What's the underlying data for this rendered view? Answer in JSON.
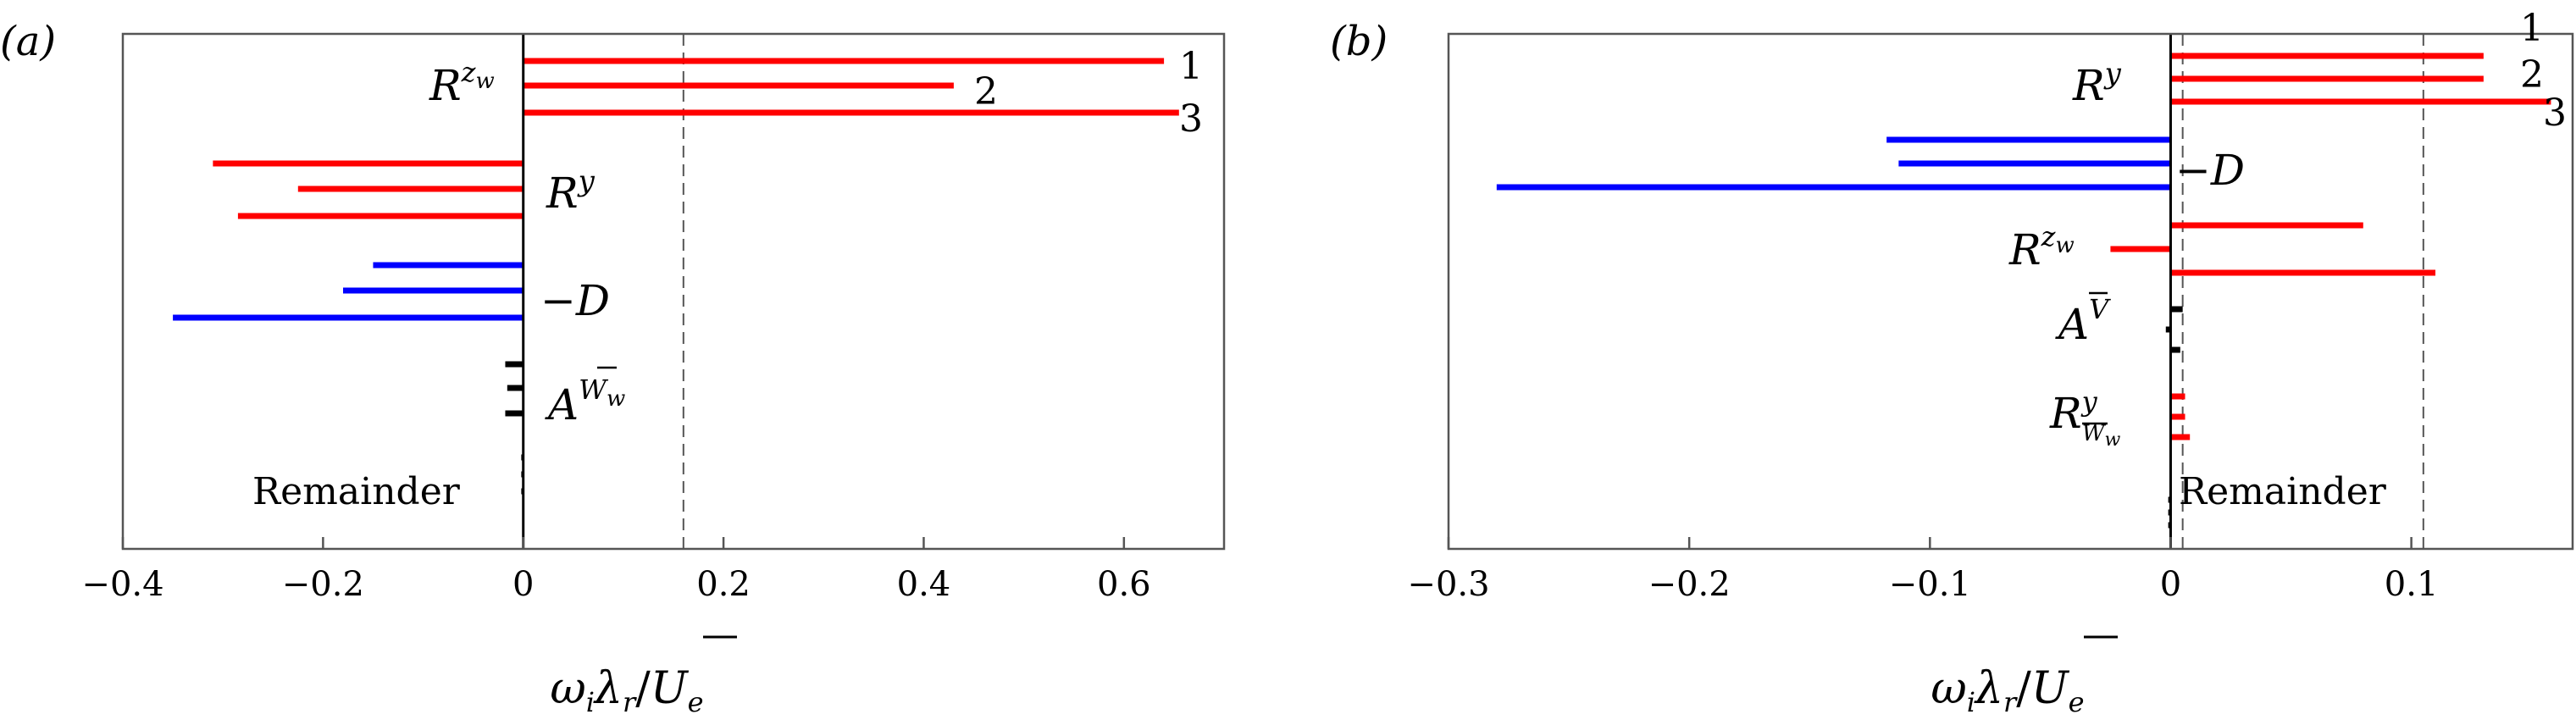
{
  "chart_data": [
    {
      "type": "bar",
      "orientation": "horizontal",
      "panel_label": "(a)",
      "xlabel": "ωiλr/Ue",
      "xlim": [
        -0.4,
        0.7
      ],
      "xticks": [
        -0.4,
        -0.2,
        0,
        0.2,
        0.4,
        0.6
      ],
      "xtick_labels": [
        "−0.4",
        "−0.2",
        "0",
        "0.2",
        "0.4",
        "0.6"
      ],
      "reference_lines": [
        0.16
      ],
      "grid": false,
      "groups": [
        {
          "term": "Rzw",
          "color": "#ff0000",
          "values": [
            0.64,
            0.43,
            0.655
          ],
          "modes": [
            "1",
            "2",
            "3"
          ],
          "label_side": "left"
        },
        {
          "term": "Ry",
          "color": "#ff0000",
          "values": [
            -0.31,
            -0.225,
            -0.285
          ],
          "label_side": "right"
        },
        {
          "term": "−D",
          "color": "#0000ff",
          "values": [
            -0.15,
            -0.18,
            -0.35
          ],
          "label_side": "right"
        },
        {
          "term": "AWw",
          "color": "#000000",
          "values": [
            -0.018,
            -0.016,
            -0.018
          ],
          "label_side": "right"
        },
        {
          "term": "Remainder",
          "color": "#000000",
          "values": [
            -0.002,
            -0.002,
            -0.002
          ],
          "label_side": "left"
        }
      ]
    },
    {
      "type": "bar",
      "orientation": "horizontal",
      "panel_label": "(b)",
      "xlabel": "ωiλr/Ue",
      "xlim": [
        -0.3,
        0.167
      ],
      "xticks": [
        -0.3,
        -0.2,
        -0.1,
        0,
        0.1
      ],
      "xtick_labels": [
        "−0.3",
        "−0.2",
        "−0.1",
        "0",
        "0.1"
      ],
      "reference_lines": [
        0.005,
        0.105
      ],
      "grid": false,
      "groups": [
        {
          "term": "Ry",
          "color": "#ff0000",
          "values": [
            0.13,
            0.13,
            0.158
          ],
          "modes": [
            "1",
            "2",
            "3"
          ],
          "label_side": "left"
        },
        {
          "term": "−D",
          "color": "#0000ff",
          "values": [
            -0.118,
            -0.113,
            -0.28
          ],
          "label_side": "right"
        },
        {
          "term": "Rzw",
          "color": "#ff0000",
          "values": [
            0.08,
            -0.025,
            0.11
          ],
          "label_side": "left"
        },
        {
          "term": "AV",
          "color": "#000000",
          "values": [
            0.005,
            -0.002,
            0.004
          ],
          "label_side": "left"
        },
        {
          "term": "RyWw",
          "color": "#ff0000",
          "values": [
            0.006,
            0.006,
            0.008
          ],
          "label_side": "left"
        },
        {
          "term": "Remainder",
          "color": "#000000",
          "values": [
            -0.001,
            -0.001,
            -0.001
          ],
          "label_side": "right"
        }
      ]
    }
  ]
}
